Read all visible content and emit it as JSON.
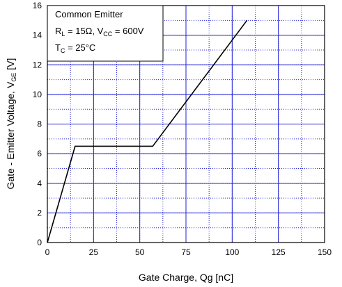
{
  "chart_data": {
    "type": "line",
    "xlabel": "Gate Charge, Qg [nC]",
    "ylabel": {
      "main": "Gate - Emitter Voltage, V",
      "subscript": "GE",
      "unit": " [V]"
    },
    "xlim": [
      0,
      150
    ],
    "ylim": [
      0,
      16
    ],
    "x_ticks": [
      "0",
      "25",
      "50",
      "75",
      "100",
      "125",
      "150"
    ],
    "y_ticks": [
      "0",
      "2",
      "4",
      "6",
      "8",
      "10",
      "12",
      "14",
      "16"
    ],
    "x_minor_step": 12.5,
    "y_minor_step": 1,
    "grid": true,
    "series": [
      {
        "color": "#000000",
        "x": [
          0,
          15,
          57,
          108
        ],
        "y": [
          0,
          6.5,
          6.5,
          15
        ]
      }
    ],
    "annotation": {
      "line1": "Common Emitter",
      "line2": {
        "r": "R",
        "r_sub": "L",
        "r_val": " = 15Ω, V",
        "v_sub": "CC",
        "v_val": " = 600V"
      },
      "line3": {
        "t": "T",
        "t_sub": "C",
        "t_val": " = 25°C"
      }
    },
    "colors": {
      "major_grid": "#1f1fd6",
      "minor_grid": "#2a2ad8",
      "line": "#000000"
    }
  }
}
